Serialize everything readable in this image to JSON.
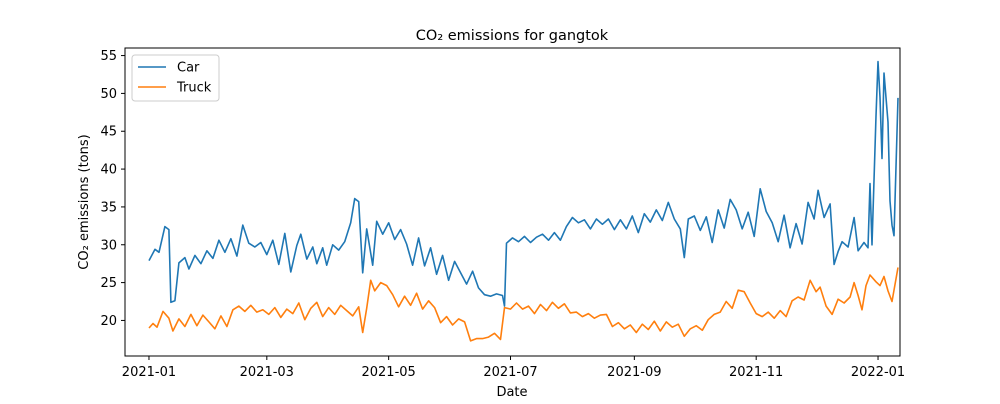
{
  "chart_data": {
    "type": "line",
    "title": "CO₂ emissions for gangtok",
    "xlabel": "Date",
    "ylabel": "CO₂ emissions (tons)",
    "x_range": [
      "2020-12-20",
      "2022-01-12"
    ],
    "ylim": [
      15.3,
      56.0
    ],
    "x_ticks": [
      {
        "date": "2021-01-01",
        "label": "2021-01"
      },
      {
        "date": "2021-03-01",
        "label": "2021-03"
      },
      {
        "date": "2021-05-01",
        "label": "2021-05"
      },
      {
        "date": "2021-07-01",
        "label": "2021-07"
      },
      {
        "date": "2021-09-01",
        "label": "2021-09"
      },
      {
        "date": "2021-11-01",
        "label": "2021-11"
      },
      {
        "date": "2022-01-01",
        "label": "2022-01"
      }
    ],
    "y_ticks": [
      20,
      25,
      30,
      35,
      40,
      45,
      50,
      55
    ],
    "grid": false,
    "legend_position": "top-left",
    "series": [
      {
        "name": "Car",
        "color": "#1f77b4",
        "points": [
          [
            "2021-01-01",
            27.9
          ],
          [
            "2021-01-04",
            29.4
          ],
          [
            "2021-01-06",
            29.0
          ],
          [
            "2021-01-09",
            32.4
          ],
          [
            "2021-01-11",
            32.0
          ],
          [
            "2021-01-12",
            22.4
          ],
          [
            "2021-01-14",
            22.6
          ],
          [
            "2021-01-16",
            27.6
          ],
          [
            "2021-01-19",
            28.3
          ],
          [
            "2021-01-21",
            26.8
          ],
          [
            "2021-01-24",
            28.6
          ],
          [
            "2021-01-27",
            27.5
          ],
          [
            "2021-01-30",
            29.2
          ],
          [
            "2021-02-02",
            28.2
          ],
          [
            "2021-02-05",
            30.6
          ],
          [
            "2021-02-08",
            29.0
          ],
          [
            "2021-02-11",
            30.8
          ],
          [
            "2021-02-14",
            28.5
          ],
          [
            "2021-02-17",
            32.6
          ],
          [
            "2021-02-20",
            30.2
          ],
          [
            "2021-02-23",
            29.7
          ],
          [
            "2021-02-26",
            30.3
          ],
          [
            "2021-03-01",
            28.7
          ],
          [
            "2021-03-04",
            30.6
          ],
          [
            "2021-03-07",
            27.4
          ],
          [
            "2021-03-10",
            31.5
          ],
          [
            "2021-03-13",
            26.4
          ],
          [
            "2021-03-16",
            29.9
          ],
          [
            "2021-03-18",
            31.4
          ],
          [
            "2021-03-21",
            28.1
          ],
          [
            "2021-03-24",
            29.7
          ],
          [
            "2021-03-26",
            27.5
          ],
          [
            "2021-03-29",
            29.6
          ],
          [
            "2021-03-31",
            27.3
          ],
          [
            "2021-04-03",
            30.0
          ],
          [
            "2021-04-06",
            29.3
          ],
          [
            "2021-04-09",
            30.4
          ],
          [
            "2021-04-12",
            32.9
          ],
          [
            "2021-04-14",
            36.1
          ],
          [
            "2021-04-16",
            35.7
          ],
          [
            "2021-04-18",
            26.3
          ],
          [
            "2021-04-20",
            32.1
          ],
          [
            "2021-04-23",
            27.3
          ],
          [
            "2021-04-25",
            33.1
          ],
          [
            "2021-04-28",
            31.4
          ],
          [
            "2021-05-01",
            32.9
          ],
          [
            "2021-05-04",
            30.7
          ],
          [
            "2021-05-07",
            32.0
          ],
          [
            "2021-05-10",
            30.1
          ],
          [
            "2021-05-13",
            27.3
          ],
          [
            "2021-05-16",
            30.9
          ],
          [
            "2021-05-19",
            27.2
          ],
          [
            "2021-05-22",
            29.6
          ],
          [
            "2021-05-25",
            26.1
          ],
          [
            "2021-05-28",
            28.6
          ],
          [
            "2021-05-31",
            25.3
          ],
          [
            "2021-06-03",
            27.8
          ],
          [
            "2021-06-06",
            26.3
          ],
          [
            "2021-06-09",
            24.8
          ],
          [
            "2021-06-12",
            26.5
          ],
          [
            "2021-06-15",
            24.3
          ],
          [
            "2021-06-18",
            23.4
          ],
          [
            "2021-06-21",
            23.2
          ],
          [
            "2021-06-24",
            23.5
          ],
          [
            "2021-06-27",
            23.3
          ],
          [
            "2021-06-28",
            21.9
          ],
          [
            "2021-06-29",
            30.2
          ],
          [
            "2021-07-02",
            30.9
          ],
          [
            "2021-07-05",
            30.4
          ],
          [
            "2021-07-08",
            31.1
          ],
          [
            "2021-07-11",
            30.3
          ],
          [
            "2021-07-14",
            31.0
          ],
          [
            "2021-07-17",
            31.4
          ],
          [
            "2021-07-20",
            30.6
          ],
          [
            "2021-07-23",
            31.6
          ],
          [
            "2021-07-26",
            30.6
          ],
          [
            "2021-07-29",
            32.4
          ],
          [
            "2021-08-01",
            33.6
          ],
          [
            "2021-08-04",
            32.9
          ],
          [
            "2021-08-07",
            33.3
          ],
          [
            "2021-08-10",
            32.1
          ],
          [
            "2021-08-13",
            33.4
          ],
          [
            "2021-08-16",
            32.7
          ],
          [
            "2021-08-19",
            33.4
          ],
          [
            "2021-08-22",
            32.0
          ],
          [
            "2021-08-25",
            33.3
          ],
          [
            "2021-08-28",
            32.1
          ],
          [
            "2021-08-31",
            33.8
          ],
          [
            "2021-09-03",
            31.6
          ],
          [
            "2021-09-06",
            34.1
          ],
          [
            "2021-09-09",
            33.0
          ],
          [
            "2021-09-12",
            34.6
          ],
          [
            "2021-09-15",
            33.2
          ],
          [
            "2021-09-18",
            35.6
          ],
          [
            "2021-09-21",
            33.4
          ],
          [
            "2021-09-24",
            32.1
          ],
          [
            "2021-09-26",
            28.3
          ],
          [
            "2021-09-28",
            33.4
          ],
          [
            "2021-10-01",
            33.8
          ],
          [
            "2021-10-04",
            31.9
          ],
          [
            "2021-10-07",
            33.7
          ],
          [
            "2021-10-10",
            30.3
          ],
          [
            "2021-10-13",
            34.6
          ],
          [
            "2021-10-16",
            32.2
          ],
          [
            "2021-10-19",
            36.0
          ],
          [
            "2021-10-22",
            34.6
          ],
          [
            "2021-10-25",
            32.1
          ],
          [
            "2021-10-28",
            34.3
          ],
          [
            "2021-10-31",
            31.1
          ],
          [
            "2021-11-03",
            37.4
          ],
          [
            "2021-11-06",
            34.4
          ],
          [
            "2021-11-09",
            32.9
          ],
          [
            "2021-11-12",
            30.4
          ],
          [
            "2021-11-15",
            33.9
          ],
          [
            "2021-11-18",
            29.6
          ],
          [
            "2021-11-21",
            32.8
          ],
          [
            "2021-11-24",
            30.1
          ],
          [
            "2021-11-27",
            35.6
          ],
          [
            "2021-11-30",
            33.4
          ],
          [
            "2021-12-02",
            37.2
          ],
          [
            "2021-12-05",
            33.6
          ],
          [
            "2021-12-08",
            35.4
          ],
          [
            "2021-12-10",
            27.4
          ],
          [
            "2021-12-12",
            29.1
          ],
          [
            "2021-12-14",
            30.4
          ],
          [
            "2021-12-17",
            29.7
          ],
          [
            "2021-12-20",
            33.6
          ],
          [
            "2021-12-22",
            29.2
          ],
          [
            "2021-12-25",
            30.3
          ],
          [
            "2021-12-27",
            29.6
          ],
          [
            "2021-12-28",
            38.1
          ],
          [
            "2021-12-29",
            30.0
          ],
          [
            "2021-12-31",
            47.0
          ],
          [
            "2022-01-01",
            54.2
          ],
          [
            "2022-01-02",
            49.5
          ],
          [
            "2022-01-03",
            41.4
          ],
          [
            "2022-01-04",
            52.7
          ],
          [
            "2022-01-06",
            46.2
          ],
          [
            "2022-01-07",
            35.8
          ],
          [
            "2022-01-08",
            32.6
          ],
          [
            "2022-01-09",
            31.2
          ],
          [
            "2022-01-11",
            49.4
          ]
        ]
      },
      {
        "name": "Truck",
        "color": "#ff7f0e",
        "points": [
          [
            "2021-01-01",
            19.0
          ],
          [
            "2021-01-03",
            19.6
          ],
          [
            "2021-01-05",
            19.1
          ],
          [
            "2021-01-08",
            21.2
          ],
          [
            "2021-01-11",
            20.3
          ],
          [
            "2021-01-13",
            18.6
          ],
          [
            "2021-01-16",
            20.2
          ],
          [
            "2021-01-19",
            19.2
          ],
          [
            "2021-01-22",
            20.8
          ],
          [
            "2021-01-25",
            19.3
          ],
          [
            "2021-01-28",
            20.7
          ],
          [
            "2021-01-31",
            19.8
          ],
          [
            "2021-02-03",
            18.9
          ],
          [
            "2021-02-06",
            20.6
          ],
          [
            "2021-02-09",
            19.2
          ],
          [
            "2021-02-12",
            21.4
          ],
          [
            "2021-02-15",
            21.9
          ],
          [
            "2021-02-18",
            21.2
          ],
          [
            "2021-02-21",
            22.0
          ],
          [
            "2021-02-24",
            21.1
          ],
          [
            "2021-02-27",
            21.4
          ],
          [
            "2021-03-02",
            20.8
          ],
          [
            "2021-03-05",
            21.7
          ],
          [
            "2021-03-08",
            20.4
          ],
          [
            "2021-03-11",
            21.5
          ],
          [
            "2021-03-14",
            20.9
          ],
          [
            "2021-03-17",
            22.3
          ],
          [
            "2021-03-20",
            20.1
          ],
          [
            "2021-03-23",
            21.6
          ],
          [
            "2021-03-26",
            22.4
          ],
          [
            "2021-03-29",
            20.5
          ],
          [
            "2021-04-01",
            21.7
          ],
          [
            "2021-04-04",
            20.8
          ],
          [
            "2021-04-07",
            22.0
          ],
          [
            "2021-04-10",
            21.3
          ],
          [
            "2021-04-13",
            20.6
          ],
          [
            "2021-04-16",
            21.8
          ],
          [
            "2021-04-18",
            18.4
          ],
          [
            "2021-04-20",
            21.6
          ],
          [
            "2021-04-22",
            25.3
          ],
          [
            "2021-04-24",
            23.9
          ],
          [
            "2021-04-27",
            25.0
          ],
          [
            "2021-04-30",
            24.6
          ],
          [
            "2021-05-03",
            23.4
          ],
          [
            "2021-05-06",
            21.8
          ],
          [
            "2021-05-09",
            23.2
          ],
          [
            "2021-05-12",
            22.0
          ],
          [
            "2021-05-15",
            23.6
          ],
          [
            "2021-05-18",
            21.5
          ],
          [
            "2021-05-21",
            22.6
          ],
          [
            "2021-05-24",
            21.7
          ],
          [
            "2021-05-27",
            19.7
          ],
          [
            "2021-05-30",
            20.5
          ],
          [
            "2021-06-02",
            19.4
          ],
          [
            "2021-06-05",
            20.2
          ],
          [
            "2021-06-08",
            19.8
          ],
          [
            "2021-06-11",
            17.3
          ],
          [
            "2021-06-14",
            17.6
          ],
          [
            "2021-06-17",
            17.6
          ],
          [
            "2021-06-20",
            17.8
          ],
          [
            "2021-06-23",
            18.3
          ],
          [
            "2021-06-26",
            17.5
          ],
          [
            "2021-06-28",
            21.7
          ],
          [
            "2021-07-01",
            21.5
          ],
          [
            "2021-07-04",
            22.3
          ],
          [
            "2021-07-07",
            21.5
          ],
          [
            "2021-07-10",
            21.9
          ],
          [
            "2021-07-13",
            20.9
          ],
          [
            "2021-07-16",
            22.1
          ],
          [
            "2021-07-19",
            21.3
          ],
          [
            "2021-07-22",
            22.4
          ],
          [
            "2021-07-25",
            21.6
          ],
          [
            "2021-07-28",
            22.2
          ],
          [
            "2021-07-31",
            21.0
          ],
          [
            "2021-08-03",
            21.1
          ],
          [
            "2021-08-06",
            20.5
          ],
          [
            "2021-08-09",
            20.9
          ],
          [
            "2021-08-12",
            20.3
          ],
          [
            "2021-08-15",
            20.7
          ],
          [
            "2021-08-18",
            20.8
          ],
          [
            "2021-08-21",
            19.2
          ],
          [
            "2021-08-24",
            19.7
          ],
          [
            "2021-08-27",
            18.9
          ],
          [
            "2021-08-30",
            19.4
          ],
          [
            "2021-09-02",
            18.4
          ],
          [
            "2021-09-05",
            19.5
          ],
          [
            "2021-09-08",
            18.8
          ],
          [
            "2021-09-11",
            19.9
          ],
          [
            "2021-09-14",
            18.6
          ],
          [
            "2021-09-17",
            19.8
          ],
          [
            "2021-09-20",
            19.1
          ],
          [
            "2021-09-23",
            19.5
          ],
          [
            "2021-09-26",
            17.9
          ],
          [
            "2021-09-29",
            18.9
          ],
          [
            "2021-10-02",
            19.3
          ],
          [
            "2021-10-05",
            18.7
          ],
          [
            "2021-10-08",
            20.1
          ],
          [
            "2021-10-11",
            20.8
          ],
          [
            "2021-10-14",
            21.1
          ],
          [
            "2021-10-17",
            22.5
          ],
          [
            "2021-10-20",
            21.6
          ],
          [
            "2021-10-23",
            24.0
          ],
          [
            "2021-10-26",
            23.8
          ],
          [
            "2021-10-29",
            22.3
          ],
          [
            "2021-11-01",
            20.9
          ],
          [
            "2021-11-04",
            20.5
          ],
          [
            "2021-11-07",
            21.1
          ],
          [
            "2021-11-10",
            20.3
          ],
          [
            "2021-11-13",
            21.3
          ],
          [
            "2021-11-16",
            20.5
          ],
          [
            "2021-11-19",
            22.6
          ],
          [
            "2021-11-22",
            23.1
          ],
          [
            "2021-11-25",
            22.7
          ],
          [
            "2021-11-28",
            25.3
          ],
          [
            "2021-12-01",
            23.8
          ],
          [
            "2021-12-03",
            24.4
          ],
          [
            "2021-12-06",
            21.9
          ],
          [
            "2021-12-09",
            20.8
          ],
          [
            "2021-12-12",
            22.8
          ],
          [
            "2021-12-15",
            22.3
          ],
          [
            "2021-12-18",
            23.1
          ],
          [
            "2021-12-20",
            25.0
          ],
          [
            "2021-12-22",
            23.3
          ],
          [
            "2021-12-24",
            21.4
          ],
          [
            "2021-12-26",
            24.6
          ],
          [
            "2021-12-28",
            26.0
          ],
          [
            "2021-12-31",
            25.1
          ],
          [
            "2022-01-02",
            24.6
          ],
          [
            "2022-01-04",
            25.8
          ],
          [
            "2022-01-06",
            23.9
          ],
          [
            "2022-01-08",
            22.5
          ],
          [
            "2022-01-11",
            27.0
          ]
        ]
      }
    ]
  }
}
